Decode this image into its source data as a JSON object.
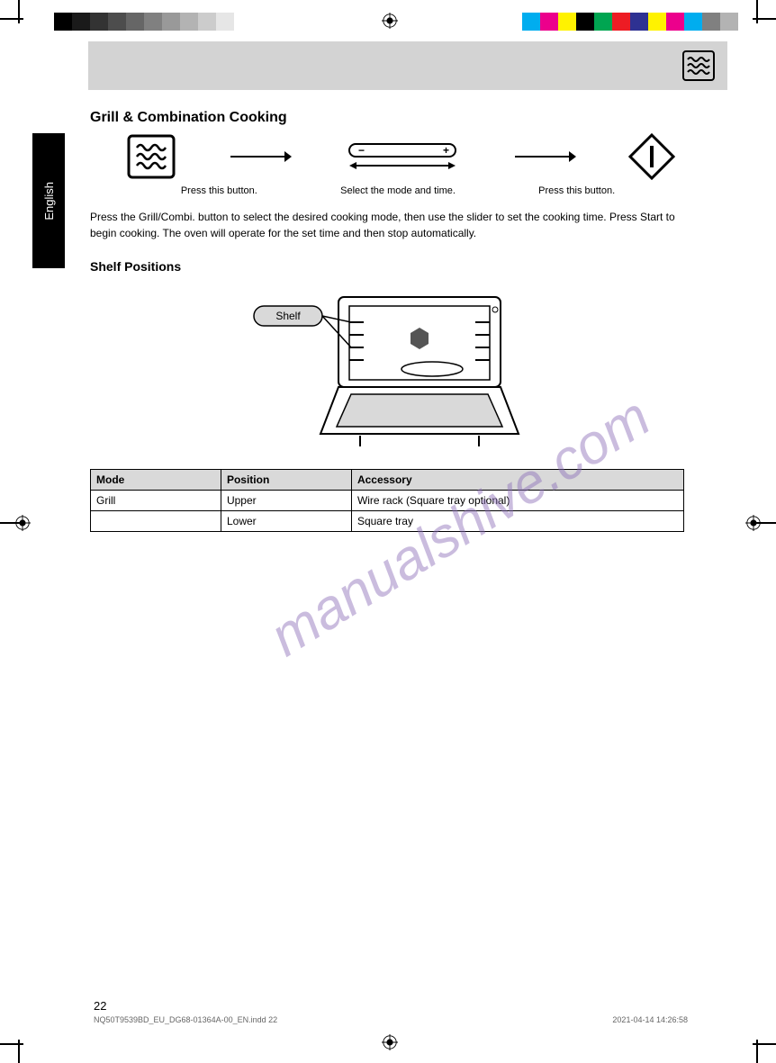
{
  "crop_marks": {
    "color": "#000000",
    "len": 26,
    "thick": 2
  },
  "reg_target": {
    "color": "#000000"
  },
  "color_strips": {
    "gray": [
      "#000000",
      "#1a1a1a",
      "#333333",
      "#4d4d4d",
      "#666666",
      "#808080",
      "#999999",
      "#b3b3b3",
      "#cccccc",
      "#e6e6e6",
      "#ffffff"
    ],
    "gray_sw": 20,
    "cmyk": [
      "#00adef",
      "#ec008c",
      "#fff200",
      "#000000",
      "#00a551",
      "#ed1c24",
      "#2e3192",
      "#fff200",
      "#ec008c",
      "#00adef",
      "#808080",
      "#b3b3b3"
    ],
    "cmyk_sw": 20
  },
  "header_icon": "grill-icon",
  "sidebar_label": "English",
  "section_title": "Grill & Combination Cooking",
  "flow": {
    "step1": {
      "icon": "grill-icon",
      "caption": "Press this button."
    },
    "step2": {
      "icon": "slider-icon",
      "caption": "Select the mode and time."
    },
    "step3": {
      "icon": "start-icon",
      "caption": "Press this button."
    }
  },
  "intro_text": "Press the Grill/Combi. button to select the desired cooking mode, then use the slider to set the cooking time. Press Start to begin cooking. The oven will operate for the set time and then stop automatically.",
  "subhead": "Shelf Positions",
  "figure": {
    "callout": "Shelf",
    "panel_bg": "#d9d9d9"
  },
  "table": {
    "columns": [
      "Mode",
      "Position",
      "Accessory"
    ],
    "rows": [
      [
        "Grill",
        "Upper",
        "Wire rack (Square tray optional)"
      ],
      [
        "",
        "Lower",
        "Square tray"
      ]
    ],
    "col_widths": [
      "22%",
      "22%",
      "56%"
    ]
  },
  "watermark": "manualshive.com",
  "page_number": "22",
  "footer": {
    "left": "NQ50T9539BD_EU_DG68-01364A-00_EN.indd   22",
    "right": "2021-04-14   14:26:58"
  }
}
